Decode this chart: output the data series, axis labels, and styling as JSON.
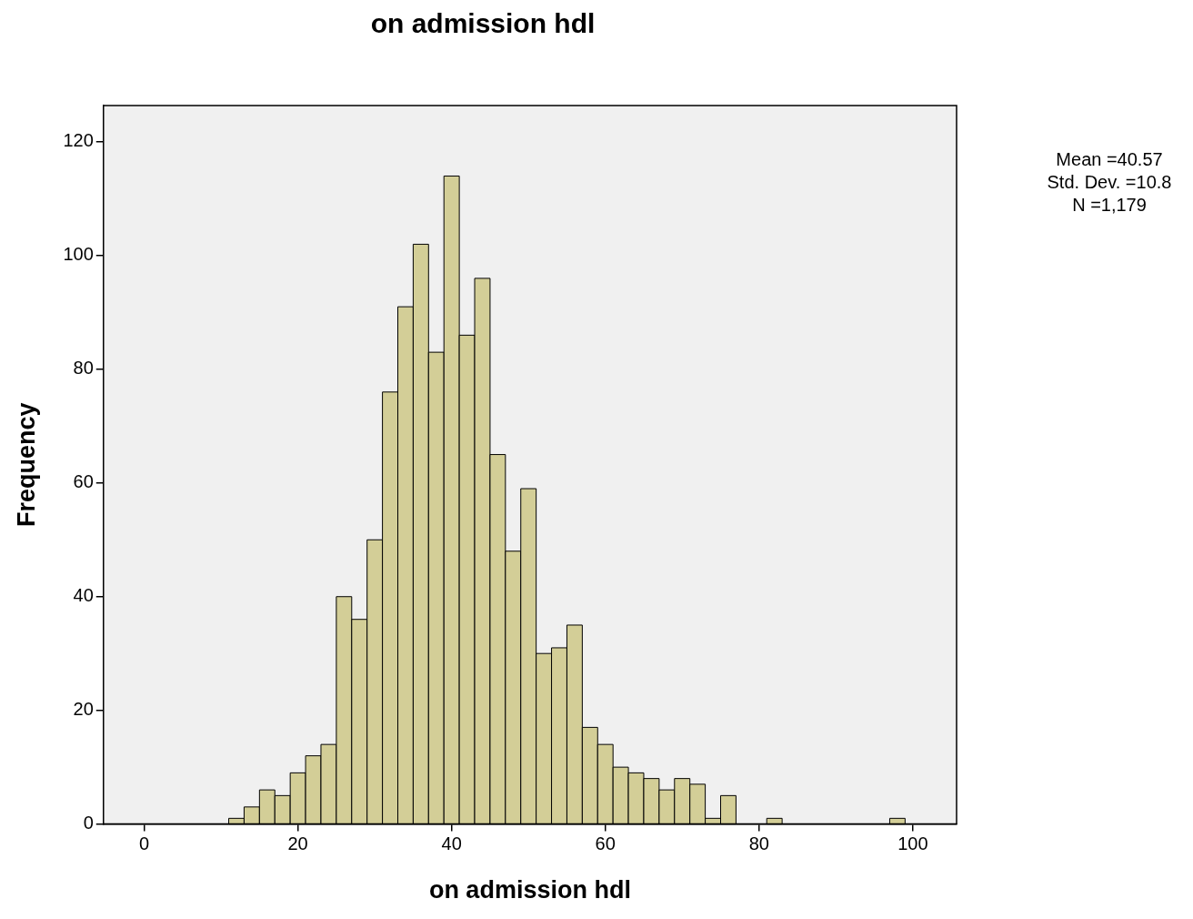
{
  "chart_data": {
    "type": "histogram",
    "title": "on admission hdl",
    "xlabel": "on admission hdl",
    "ylabel": "Frequency",
    "annotations": [
      "Mean =40.57",
      "Std. Dev. =10.8",
      "N =1,179"
    ],
    "bins": [
      11,
      13,
      15,
      17,
      19,
      21,
      23,
      25,
      27,
      29,
      31,
      33,
      35,
      37,
      39,
      41,
      43,
      45,
      47,
      49,
      51,
      53,
      55,
      57,
      59,
      61,
      63,
      65,
      67,
      69,
      71,
      73,
      75,
      77,
      79,
      81,
      83,
      85,
      87,
      89,
      91,
      93,
      95,
      97,
      99
    ],
    "values": [
      1,
      3,
      6,
      5,
      9,
      12,
      14,
      40,
      36,
      50,
      76,
      91,
      102,
      83,
      114,
      86,
      96,
      65,
      48,
      59,
      30,
      31,
      35,
      17,
      14,
      10,
      9,
      8,
      6,
      8,
      7,
      1,
      5,
      0,
      0,
      1,
      0,
      0,
      0,
      0,
      0,
      0,
      0,
      1
    ],
    "color": "#d3ce97",
    "xlim": [
      -5.3,
      105.7
    ],
    "xticks": [
      0,
      20,
      40,
      60,
      80,
      100
    ],
    "ylim": [
      0,
      126.4
    ],
    "yticks": [
      0,
      20,
      40,
      60,
      80,
      100,
      120
    ],
    "grid": false,
    "legend": false
  }
}
